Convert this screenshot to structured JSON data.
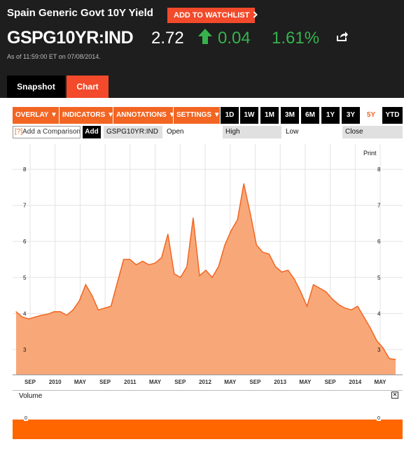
{
  "header": {
    "title": "Spain Generic Govt 10Y Yield",
    "watchlist_label": "ADD TO WATCHLIST",
    "watchlist_icon": "chevron-right-icon",
    "ticker": "GSPG10YR:IND",
    "price": "2.72",
    "change": "0.04",
    "change_pct": "1.61%",
    "change_icon": "up-arrow-icon",
    "share_icon": "share-icon",
    "as_of": "As of 11:59:00 ET on 07/08/2014."
  },
  "tabs": [
    {
      "label": "Snapshot"
    },
    {
      "label": "Chart"
    }
  ],
  "toolbar": {
    "dropdowns": [
      {
        "label": "OVERLAY"
      },
      {
        "label": "INDICATORS"
      },
      {
        "label": "ANNOTATIONS"
      },
      {
        "label": "SETTINGS"
      }
    ],
    "ranges": [
      {
        "label": "1D"
      },
      {
        "label": "1W"
      },
      {
        "label": "1M"
      },
      {
        "label": "3M"
      },
      {
        "label": "6M"
      },
      {
        "label": "1Y"
      },
      {
        "label": "3Y"
      },
      {
        "label": "5Y"
      },
      {
        "label": "YTD"
      }
    ],
    "active_range": "5Y"
  },
  "compare": {
    "help": "[?]",
    "placeholder": "Add a Comparison",
    "add_label": "Add",
    "ticker": "GSPG10YR:IND",
    "open_label": "Open",
    "high_label": "High",
    "low_label": "Low",
    "close_label": "Close"
  },
  "chart_data": {
    "type": "area",
    "color": "#f26522",
    "fill": "#f8a878",
    "ylim": [
      2.3,
      8.7
    ],
    "yticks": [
      "8",
      "7",
      "6",
      "5",
      "4",
      "3"
    ],
    "xticks": [
      "SEP",
      "2010",
      "MAY",
      "SEP",
      "2011",
      "MAY",
      "SEP",
      "2012",
      "MAY",
      "SEP",
      "2013",
      "MAY",
      "SEP",
      "2014",
      "MAY"
    ],
    "x": [
      "2009-07",
      "2009-08",
      "2009-09",
      "2009-10",
      "2009-11",
      "2009-12",
      "2010-01",
      "2010-02",
      "2010-03",
      "2010-04",
      "2010-05",
      "2010-06",
      "2010-07",
      "2010-08",
      "2010-09",
      "2010-10",
      "2010-11",
      "2010-12",
      "2011-01",
      "2011-02",
      "2011-03",
      "2011-04",
      "2011-05",
      "2011-06",
      "2011-07",
      "2011-08",
      "2011-09",
      "2011-10",
      "2011-11",
      "2011-12",
      "2012-01",
      "2012-02",
      "2012-03",
      "2012-04",
      "2012-05",
      "2012-06",
      "2012-07",
      "2012-08",
      "2012-09",
      "2012-10",
      "2012-11",
      "2012-12",
      "2013-01",
      "2013-02",
      "2013-03",
      "2013-04",
      "2013-05",
      "2013-06",
      "2013-07",
      "2013-08",
      "2013-09",
      "2013-10",
      "2013-11",
      "2013-12",
      "2014-01",
      "2014-02",
      "2014-03",
      "2014-04",
      "2014-05",
      "2014-06",
      "2014-07"
    ],
    "values": [
      4.05,
      3.9,
      3.85,
      3.9,
      3.95,
      3.98,
      4.05,
      4.05,
      3.95,
      4.1,
      4.35,
      4.8,
      4.5,
      4.1,
      4.15,
      4.2,
      4.85,
      5.5,
      5.5,
      5.35,
      5.45,
      5.35,
      5.4,
      5.55,
      6.2,
      5.1,
      5.0,
      5.3,
      6.65,
      5.05,
      5.2,
      5.0,
      5.3,
      5.9,
      6.3,
      6.6,
      7.6,
      6.8,
      5.9,
      5.7,
      5.65,
      5.3,
      5.15,
      5.2,
      4.95,
      4.6,
      4.2,
      4.8,
      4.7,
      4.6,
      4.4,
      4.25,
      4.15,
      4.1,
      4.2,
      3.9,
      3.6,
      3.25,
      3.05,
      2.75,
      2.72
    ],
    "ylabel": "",
    "xlabel": "",
    "grid": true
  },
  "print_label": "Print",
  "volume": {
    "label": "Volume",
    "close_icon": "close-icon",
    "tick": "0"
  }
}
